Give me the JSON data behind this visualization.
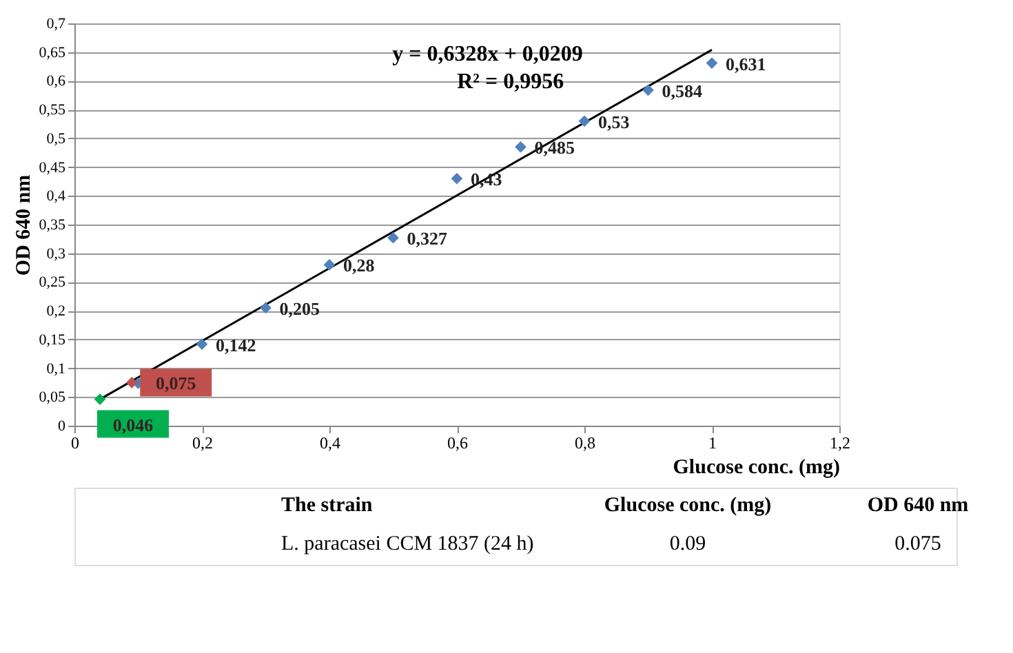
{
  "chart_data": {
    "type": "scatter",
    "xlabel": "Glucose conc. (mg)",
    "ylabel": "OD 640 nm",
    "marker": "diamond",
    "grid": "y",
    "xlim": [
      0,
      1.2
    ],
    "xticks": [
      0,
      {
        "value": 0.2,
        "label": "0,2"
      },
      {
        "value": 0.4,
        "label": "0,4"
      },
      {
        "value": 0.6,
        "label": "0,6"
      },
      {
        "value": 0.8,
        "label": "0,8"
      },
      1,
      {
        "value": 1.2,
        "label": "1,2"
      }
    ],
    "ylim": [
      0,
      0.7
    ],
    "yticks": [
      0,
      {
        "value": 0.05,
        "label": "0,05"
      },
      {
        "value": 0.1,
        "label": "0,1"
      },
      {
        "value": 0.15,
        "label": "0,15"
      },
      {
        "value": 0.2,
        "label": "0,2"
      },
      {
        "value": 0.25,
        "label": "0,25"
      },
      {
        "value": 0.3,
        "label": "0,3"
      },
      {
        "value": 0.35,
        "label": "0,35"
      },
      {
        "value": 0.4,
        "label": "0,4"
      },
      {
        "value": 0.45,
        "label": "0,45"
      },
      {
        "value": 0.5,
        "label": "0,5"
      },
      {
        "value": 0.55,
        "label": "0,55"
      },
      {
        "value": 0.6,
        "label": "0,6"
      },
      {
        "value": 0.65,
        "label": "0,65"
      },
      {
        "value": 0.7,
        "label": "0,7"
      }
    ],
    "series": [
      {
        "type": "line",
        "marker": "none",
        "color": "#000000",
        "x": [
          0.04,
          1.0
        ],
        "values": [
          0.046,
          0.654
        ]
      },
      {
        "color": "#4f81bd",
        "x": [
          0.1,
          0.2,
          0.3,
          0.4,
          0.5,
          0.6,
          0.7,
          0.8,
          0.9,
          1.0
        ],
        "values": [
          0.074,
          0.142,
          0.205,
          0.28,
          0.327,
          0.43,
          0.485,
          0.53,
          0.584,
          0.631
        ],
        "value_labels": [
          null,
          "0,142",
          "0,205",
          "0,28",
          "0,327",
          "0,43",
          "0,485",
          "0,53",
          "0,584",
          "0,631"
        ]
      },
      {
        "color": "#c0504d",
        "x": [
          0.09
        ],
        "values": [
          0.075
        ],
        "value_labels": [
          "0,075"
        ]
      },
      {
        "color": "#00b050",
        "x": [
          0.04
        ],
        "values": [
          0.046
        ],
        "value_labels": [
          "0,046"
        ]
      }
    ],
    "annotations": [
      "y = 0,6328x + 0,0209",
      "R² = 0,9956",
      "The strain",
      "Glucose conc. (mg)",
      "OD 640 nm",
      "L. paracasei CCM 1837 (24 h)",
      "0.09",
      "0.075"
    ]
  }
}
